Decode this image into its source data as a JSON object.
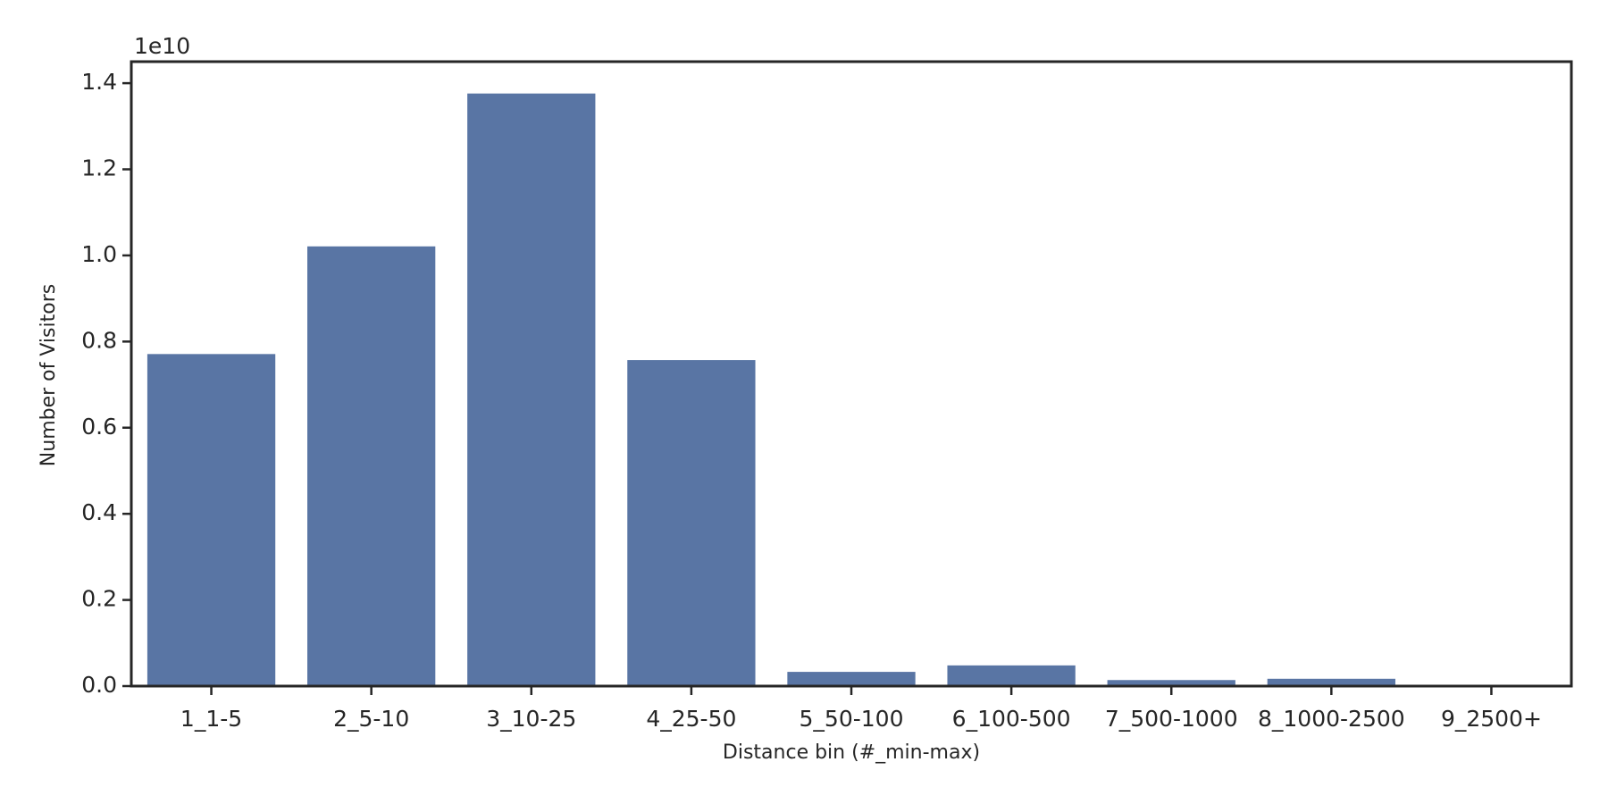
{
  "chart_data": {
    "type": "bar",
    "x_label": "Distance bin (#_min-max)",
    "y_label": "Number of Visitors",
    "y_offset_label": "1e10",
    "categories": [
      "1_1-5",
      "2_5-10",
      "3_10-25",
      "4_25-50",
      "5_50-100",
      "6_100-500",
      "7_500-1000",
      "8_1000-2500",
      "9_2500+"
    ],
    "values": [
      0.771,
      1.021,
      1.376,
      0.757,
      0.033,
      0.048,
      0.014,
      0.017,
      0.0003
    ],
    "color": "#5975a4",
    "ylim": [
      0,
      1.45
    ],
    "yticks": [
      {
        "value": 0,
        "label": "0.0"
      },
      0.2,
      0.4,
      0.6,
      0.8,
      {
        "value": 1,
        "label": "1.0"
      },
      1.2,
      1.4
    ],
    "grid": false
  }
}
